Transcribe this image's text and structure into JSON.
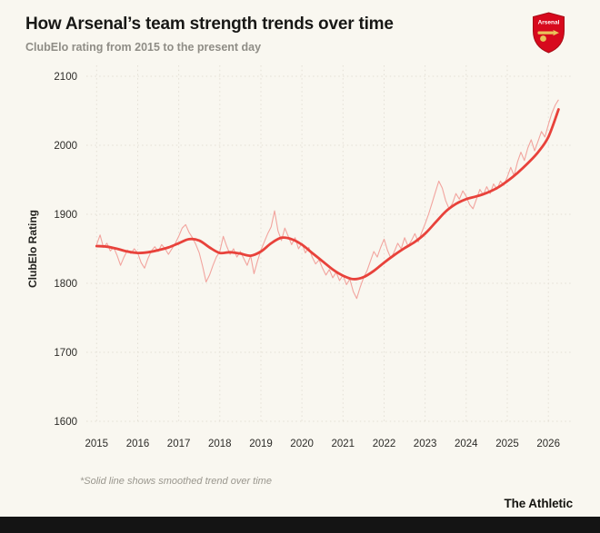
{
  "page": {
    "footnote": "*Solid line shows smoothed trend over time",
    "brand": "The Athletic",
    "colors": {
      "background": "#f9f7f0",
      "crest_red": "#d7091d",
      "crest_gold": "#e8c35a",
      "footer_bar": "#141414"
    }
  },
  "chart_data": {
    "type": "line",
    "title": "How Arsenal’s team strength trends over time",
    "subtitle": "ClubElo rating from 2015 to the present day",
    "xlabel": "",
    "ylabel": "ClubElo Rating",
    "ylim": [
      1600,
      2100
    ],
    "xlim": [
      2014.75,
      2026.55
    ],
    "yticks": [
      1600,
      1700,
      1800,
      1900,
      2000,
      2100
    ],
    "xticks": [
      2015,
      2016,
      2017,
      2018,
      2019,
      2020,
      2021,
      2022,
      2023,
      2024,
      2025,
      2026
    ],
    "grid": "dotted",
    "grid_color": "#e3dfd5",
    "tick_color": "#2c2b28",
    "label_color": "#23221f",
    "legend": "none",
    "series": [
      {
        "name": "raw-rating",
        "color": "#f2a49e",
        "width": 1.1,
        "smooth": false,
        "x_start": 2015.0,
        "x_step": 0.0833333,
        "y": [
          1856,
          1870,
          1852,
          1858,
          1847,
          1852,
          1840,
          1826,
          1838,
          1848,
          1843,
          1850,
          1844,
          1830,
          1822,
          1836,
          1847,
          1853,
          1846,
          1856,
          1850,
          1842,
          1850,
          1858,
          1868,
          1880,
          1885,
          1874,
          1866,
          1856,
          1844,
          1824,
          1802,
          1812,
          1826,
          1838,
          1846,
          1868,
          1854,
          1842,
          1850,
          1838,
          1846,
          1836,
          1826,
          1840,
          1814,
          1832,
          1848,
          1860,
          1872,
          1882,
          1905,
          1876,
          1862,
          1880,
          1868,
          1856,
          1866,
          1850,
          1858,
          1844,
          1852,
          1838,
          1828,
          1834,
          1822,
          1812,
          1820,
          1808,
          1816,
          1804,
          1812,
          1798,
          1806,
          1788,
          1778,
          1794,
          1808,
          1818,
          1832,
          1846,
          1838,
          1852,
          1864,
          1848,
          1836,
          1846,
          1858,
          1850,
          1866,
          1854,
          1862,
          1872,
          1860,
          1874,
          1886,
          1900,
          1916,
          1932,
          1948,
          1938,
          1920,
          1908,
          1916,
          1930,
          1922,
          1934,
          1926,
          1914,
          1908,
          1922,
          1936,
          1928,
          1940,
          1930,
          1944,
          1936,
          1948,
          1942,
          1954,
          1968,
          1956,
          1976,
          1990,
          1978,
          1996,
          2008,
          1992,
          2006,
          2020,
          2012,
          2030,
          2046,
          2058,
          2066
        ]
      },
      {
        "name": "smoothed-trend",
        "color": "#e8423b",
        "width": 2.8,
        "smooth": true,
        "x_start": 2015.0,
        "x_step": 0.25,
        "y": [
          1854,
          1853,
          1850,
          1846,
          1844,
          1845,
          1848,
          1852,
          1858,
          1864,
          1862,
          1852,
          1844,
          1845,
          1843,
          1840,
          1846,
          1858,
          1866,
          1864,
          1856,
          1844,
          1832,
          1820,
          1811,
          1806,
          1809,
          1818,
          1830,
          1841,
          1851,
          1860,
          1872,
          1888,
          1904,
          1915,
          1922,
          1926,
          1931,
          1938,
          1948,
          1960,
          1974,
          1990,
          2012,
          2052
        ]
      }
    ]
  }
}
